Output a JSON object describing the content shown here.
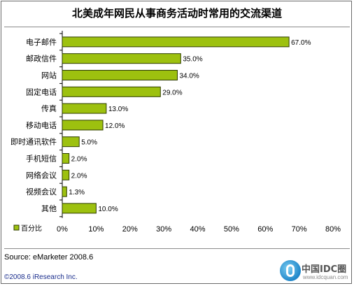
{
  "chart_data": {
    "type": "bar",
    "orientation": "horizontal",
    "title": "北美成年网民从事商务活动时常用的交流渠道",
    "categories": [
      "电子邮件",
      "邮政信件",
      "网站",
      "固定电话",
      "传真",
      "移动电话",
      "即时通讯软件",
      "手机短信",
      "网络会议",
      "视频会议",
      "其他"
    ],
    "series": [
      {
        "name": "百分比",
        "values": [
          67.0,
          35.0,
          34.0,
          29.0,
          13.0,
          12.0,
          5.0,
          2.0,
          2.0,
          1.3,
          10.0
        ],
        "labels": [
          "67.0%",
          "35.0%",
          "34.0%",
          "29.0%",
          "13.0%",
          "12.0%",
          "5.0%",
          "2.0%",
          "2.0%",
          "1.3%",
          "10.0%"
        ]
      }
    ],
    "xlim": [
      0,
      80
    ],
    "xticks": [
      "0%",
      "10%",
      "20%",
      "30%",
      "40%",
      "50%",
      "60%",
      "70%",
      "80%"
    ],
    "grid": false,
    "legend": "bottom-left",
    "bar_color": "#9dc10f",
    "bar_edge_color": "#2d3b00"
  },
  "source": "Source: eMarketer 2008.6",
  "copyright": "©2008.6 iResearch Inc.",
  "watermark": {
    "text": "中国IDC圈",
    "sub": "www.idcquan.com"
  }
}
